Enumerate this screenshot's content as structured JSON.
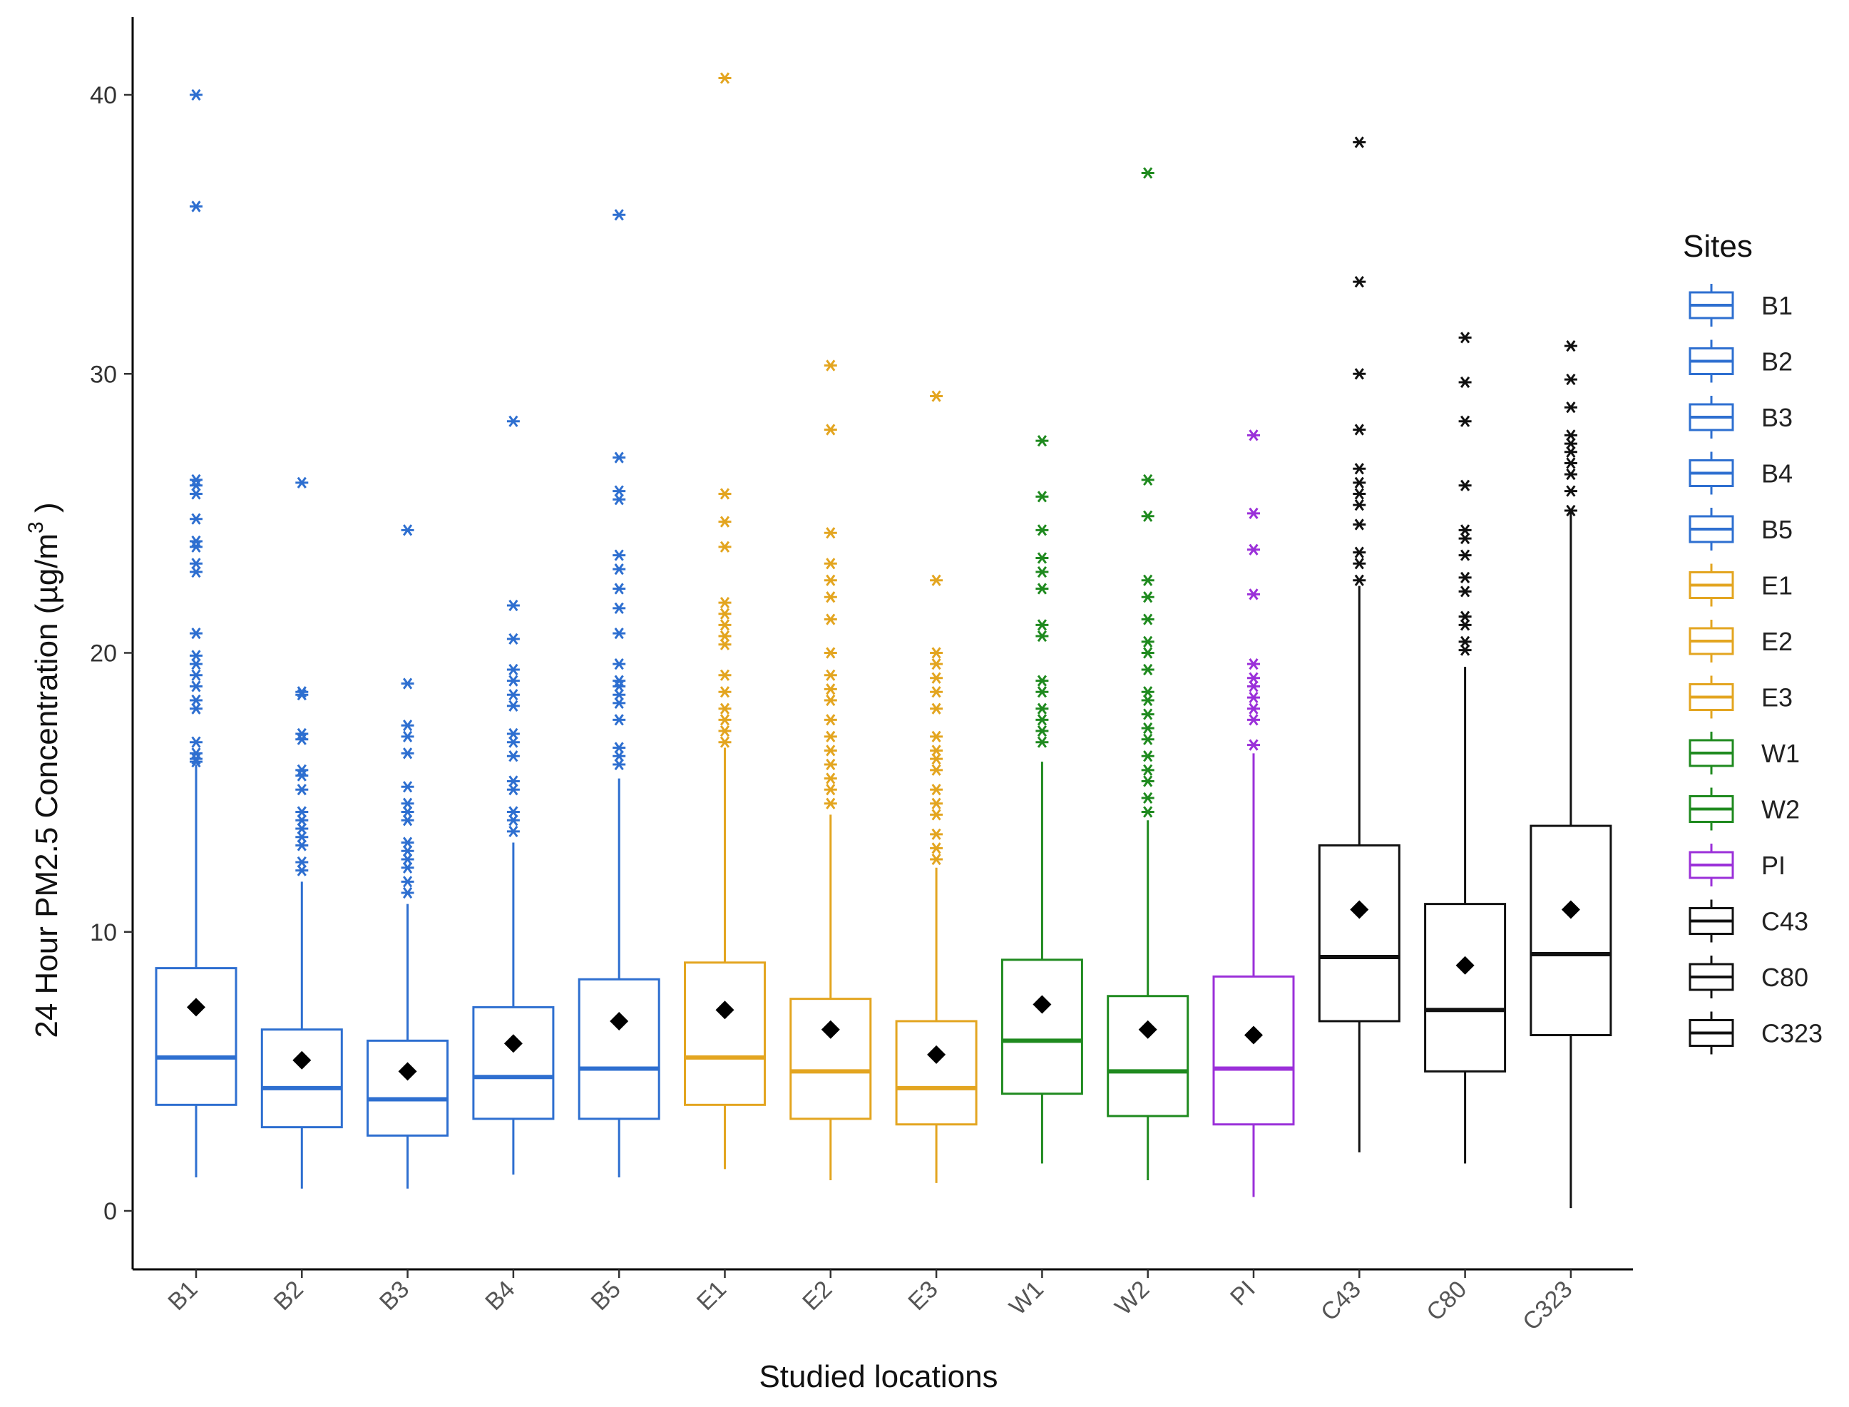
{
  "chart_data": {
    "type": "box",
    "xlabel": "Studied locations",
    "ylabel": "24 Hour PM2.5 Concentration (µg/m",
    "ylabel_superscript": "3",
    "ylabel_suffix": " )",
    "ylim": [
      -1.8,
      43
    ],
    "y_ticks": [
      0,
      10,
      20,
      30,
      40
    ],
    "grid": false,
    "legend": {
      "title": "Sites",
      "position": "right"
    },
    "categories": [
      "B1",
      "B2",
      "B3",
      "B4",
      "B5",
      "E1",
      "E2",
      "E3",
      "W1",
      "W2",
      "PI",
      "C43",
      "C80",
      "C323"
    ],
    "colors": {
      "B1": "#2e6fd0",
      "B2": "#2e6fd0",
      "B3": "#2e6fd0",
      "B4": "#2e6fd0",
      "B5": "#2e6fd0",
      "E1": "#e3a520",
      "E2": "#e3a520",
      "E3": "#e3a520",
      "W1": "#1f8a1f",
      "W2": "#1f8a1f",
      "PI": "#9b30d9",
      "C43": "#111111",
      "C80": "#111111",
      "C323": "#111111"
    },
    "series": [
      {
        "name": "B1",
        "whisker_low": 1.2,
        "q1": 3.8,
        "median": 5.5,
        "q3": 8.7,
        "whisker_high": 16.0,
        "mean": 7.3,
        "outliers": [
          16.1,
          16.2,
          16.4,
          16.8,
          18.0,
          18.3,
          18.8,
          19.2,
          19.6,
          19.9,
          20.7,
          22.9,
          23.2,
          23.8,
          24.0,
          24.8,
          25.7,
          26.0,
          26.2,
          36.0,
          40.0
        ]
      },
      {
        "name": "B2",
        "whisker_low": 0.8,
        "q1": 3.0,
        "median": 4.4,
        "q3": 6.5,
        "whisker_high": 11.8,
        "mean": 5.4,
        "outliers": [
          12.2,
          12.5,
          13.1,
          13.4,
          13.7,
          14.0,
          14.3,
          15.1,
          15.6,
          15.8,
          16.9,
          17.1,
          18.5,
          18.6,
          26.1
        ]
      },
      {
        "name": "B3",
        "whisker_low": 0.8,
        "q1": 2.7,
        "median": 4.0,
        "q3": 6.1,
        "whisker_high": 11.0,
        "mean": 5.0,
        "outliers": [
          11.4,
          11.8,
          12.3,
          12.6,
          12.9,
          13.2,
          14.0,
          14.3,
          14.6,
          15.2,
          16.4,
          17.0,
          17.4,
          18.9,
          24.4
        ]
      },
      {
        "name": "B4",
        "whisker_low": 1.3,
        "q1": 3.3,
        "median": 4.8,
        "q3": 7.3,
        "whisker_high": 13.2,
        "mean": 6.0,
        "outliers": [
          13.6,
          14.0,
          14.3,
          15.1,
          15.4,
          16.3,
          16.8,
          17.1,
          18.1,
          18.5,
          19.0,
          19.4,
          20.5,
          21.7,
          28.3
        ]
      },
      {
        "name": "B5",
        "whisker_low": 1.2,
        "q1": 3.3,
        "median": 5.1,
        "q3": 8.3,
        "whisker_high": 15.5,
        "mean": 6.8,
        "outliers": [
          16.0,
          16.3,
          16.6,
          17.6,
          18.2,
          18.5,
          18.8,
          19.0,
          19.6,
          20.7,
          21.6,
          22.3,
          23.0,
          23.5,
          25.5,
          25.8,
          27.0,
          35.7
        ]
      },
      {
        "name": "E1",
        "whisker_low": 1.5,
        "q1": 3.8,
        "median": 5.5,
        "q3": 8.9,
        "whisker_high": 16.6,
        "mean": 7.2,
        "outliers": [
          16.8,
          17.2,
          17.6,
          18.0,
          18.6,
          19.2,
          20.3,
          20.6,
          21.0,
          21.4,
          21.8,
          23.8,
          24.7,
          25.7,
          40.6
        ]
      },
      {
        "name": "E2",
        "whisker_low": 1.1,
        "q1": 3.3,
        "median": 5.0,
        "q3": 7.6,
        "whisker_high": 14.2,
        "mean": 6.5,
        "outliers": [
          14.6,
          15.1,
          15.5,
          16.0,
          16.5,
          17.0,
          17.6,
          18.3,
          18.7,
          19.2,
          20.0,
          21.2,
          22.0,
          22.6,
          23.2,
          24.3,
          28.0,
          30.3
        ]
      },
      {
        "name": "E3",
        "whisker_low": 1.0,
        "q1": 3.1,
        "median": 4.4,
        "q3": 6.8,
        "whisker_high": 12.3,
        "mean": 5.6,
        "outliers": [
          12.6,
          13.0,
          13.5,
          14.2,
          14.6,
          15.1,
          15.8,
          16.2,
          16.5,
          17.0,
          18.0,
          18.6,
          19.1,
          19.6,
          20.0,
          22.6,
          29.2
        ]
      },
      {
        "name": "W1",
        "whisker_low": 1.7,
        "q1": 4.2,
        "median": 6.1,
        "q3": 9.0,
        "whisker_high": 16.1,
        "mean": 7.4,
        "outliers": [
          16.8,
          17.2,
          17.6,
          18.0,
          18.6,
          19.0,
          20.6,
          21.0,
          22.3,
          22.9,
          23.4,
          24.4,
          25.6,
          27.6
        ]
      },
      {
        "name": "W2",
        "whisker_low": 1.1,
        "q1": 3.4,
        "median": 5.0,
        "q3": 7.7,
        "whisker_high": 14.0,
        "mean": 6.5,
        "outliers": [
          14.3,
          14.8,
          15.4,
          15.8,
          16.3,
          16.9,
          17.3,
          17.8,
          18.3,
          18.6,
          19.4,
          20.0,
          20.4,
          21.2,
          22.0,
          22.6,
          24.9,
          26.2,
          37.2
        ]
      },
      {
        "name": "PI",
        "whisker_low": 0.5,
        "q1": 3.1,
        "median": 5.1,
        "q3": 8.4,
        "whisker_high": 16.4,
        "mean": 6.3,
        "outliers": [
          16.7,
          17.6,
          18.0,
          18.4,
          18.8,
          19.1,
          19.6,
          22.1,
          23.7,
          25.0,
          27.8
        ]
      },
      {
        "name": "C43",
        "whisker_low": 2.1,
        "q1": 6.8,
        "median": 9.1,
        "q3": 13.1,
        "whisker_high": 22.4,
        "mean": 10.8,
        "outliers": [
          22.6,
          23.2,
          23.6,
          24.6,
          25.3,
          25.7,
          26.1,
          26.6,
          28.0,
          30.0,
          33.3,
          38.3
        ]
      },
      {
        "name": "C80",
        "whisker_low": 1.7,
        "q1": 5.0,
        "median": 7.2,
        "q3": 11.0,
        "whisker_high": 19.5,
        "mean": 8.8,
        "outliers": [
          20.1,
          20.4,
          21.0,
          21.3,
          22.2,
          22.7,
          23.5,
          24.1,
          24.4,
          26.0,
          28.3,
          29.7,
          31.3
        ]
      },
      {
        "name": "C323",
        "whisker_low": 0.1,
        "q1": 6.3,
        "median": 9.2,
        "q3": 13.8,
        "whisker_high": 25.1,
        "mean": 10.8,
        "outliers": [
          25.1,
          25.8,
          26.4,
          26.8,
          27.2,
          27.5,
          27.8,
          28.8,
          29.8,
          31.0
        ]
      }
    ]
  }
}
